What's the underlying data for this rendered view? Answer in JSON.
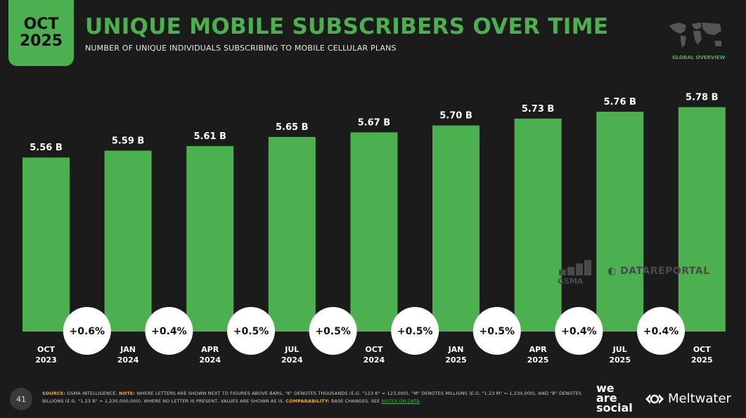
{
  "header": {
    "date_month": "OCT",
    "date_year": "2025",
    "title": "UNIQUE MOBILE SUBSCRIBERS OVER TIME",
    "subtitle": "NUMBER OF UNIQUE INDIVIDUALS SUBSCRIBING TO MOBILE CELLULAR PLANS",
    "map_label": "GLOBAL OVERVIEW"
  },
  "chart_data": {
    "type": "bar",
    "categories": [
      [
        "OCT",
        "2023"
      ],
      [
        "JAN",
        "2024"
      ],
      [
        "APR",
        "2024"
      ],
      [
        "JUL",
        "2024"
      ],
      [
        "OCT",
        "2024"
      ],
      [
        "JAN",
        "2025"
      ],
      [
        "APR",
        "2025"
      ],
      [
        "JUL",
        "2025"
      ],
      [
        "OCT",
        "2025"
      ]
    ],
    "values": [
      5.56,
      5.59,
      5.61,
      5.65,
      5.67,
      5.7,
      5.73,
      5.76,
      5.78
    ],
    "value_labels": [
      "5.56 B",
      "5.59 B",
      "5.61 B",
      "5.65 B",
      "5.67 B",
      "5.70 B",
      "5.73 B",
      "5.76 B",
      "5.78 B"
    ],
    "changes": [
      "+0.6%",
      "+0.4%",
      "+0.5%",
      "+0.5%",
      "+0.5%",
      "+0.5%",
      "+0.4%",
      "+0.4%"
    ],
    "bar_color": "#4caf50"
  },
  "watermarks": {
    "gsma": "GSMA",
    "datareportal": "DATAREPORTAL"
  },
  "footer": {
    "page_number": "41",
    "source_label": "SOURCE:",
    "source_text": " GSMA INTELLIGENCE. ",
    "note_label": "NOTE:",
    "note_text": " WHERE LETTERS ARE SHOWN NEXT TO FIGURES ABOVE BARS, \"K\" DENOTES THOUSANDS (E.G. \"123 K\" = 123,000), \"M\" DENOTES MILLIONS (E.G. \"1.23 M\" = 1,230,000), AND \"B\" DENOTES BILLIONS (E.G. \"1.23 B\" = 1,230,000,000). WHERE NO LETTER IS PRESENT, VALUES ARE SHOWN AS IS. ",
    "comparability_label": "COMPARABILITY:",
    "comparability_text": " BASE CHANGES. SEE ",
    "notes_link": "NOTES ON DATA",
    "period": "."
  },
  "logos": {
    "was_line1": "we",
    "was_line2": "are",
    "was_line3": "social",
    "meltwater": "Meltwater"
  }
}
